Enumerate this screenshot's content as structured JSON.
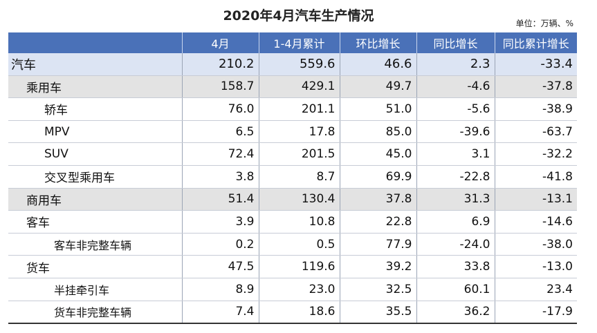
{
  "title": "2020年4月汽车生产情况",
  "unit": "单位：万辆、%",
  "headers": [
    "",
    "4月",
    "1-4月累计",
    "环比增长",
    "同比增长",
    "同比累计增长"
  ],
  "rows": [
    {
      "name": "汽车",
      "level": "lvl0",
      "values": [
        "210.2",
        "559.6",
        "46.6",
        "2.3",
        "-33.4"
      ]
    },
    {
      "name": "乘用车",
      "level": "lvl1",
      "values": [
        "158.7",
        "429.1",
        "49.7",
        "-4.6",
        "-37.8"
      ]
    },
    {
      "name": "轿车",
      "level": "lvl2",
      "values": [
        "76.0",
        "201.1",
        "51.0",
        "-5.6",
        "-38.9"
      ]
    },
    {
      "name": "MPV",
      "level": "lvl2",
      "values": [
        "6.5",
        "17.8",
        "85.0",
        "-39.6",
        "-63.7"
      ]
    },
    {
      "name": "SUV",
      "level": "lvl2",
      "values": [
        "72.4",
        "201.5",
        "45.0",
        "3.1",
        "-32.2"
      ]
    },
    {
      "name": "交叉型乘用车",
      "level": "lvl2",
      "values": [
        "3.8",
        "8.7",
        "69.9",
        "-22.8",
        "-41.8"
      ]
    },
    {
      "name": "商用车",
      "level": "lvl1",
      "values": [
        "51.4",
        "130.4",
        "37.8",
        "31.3",
        "-13.1"
      ]
    },
    {
      "name": "客车",
      "level": "lvl1-plain",
      "values": [
        "3.9",
        "10.8",
        "22.8",
        "6.9",
        "-14.6"
      ]
    },
    {
      "name": "客车非完整车辆",
      "level": "lvl3",
      "values": [
        "0.2",
        "0.5",
        "77.9",
        "-24.0",
        "-38.0"
      ]
    },
    {
      "name": "货车",
      "level": "lvl1-plain",
      "values": [
        "47.5",
        "119.6",
        "39.2",
        "33.8",
        "-13.0"
      ]
    },
    {
      "name": "半挂牵引车",
      "level": "lvl3",
      "values": [
        "8.9",
        "23.0",
        "32.5",
        "60.1",
        "23.4"
      ]
    },
    {
      "name": "货车非完整车辆",
      "level": "lvl3",
      "values": [
        "7.4",
        "18.6",
        "35.5",
        "36.2",
        "-17.9"
      ]
    }
  ]
}
